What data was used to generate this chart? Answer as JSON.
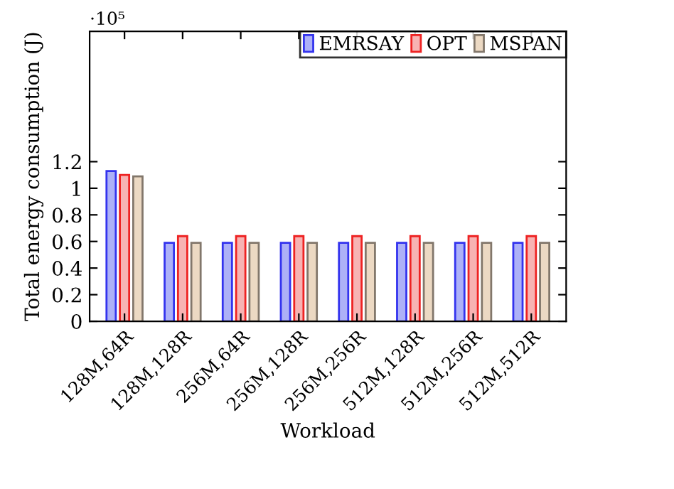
{
  "chart_data": {
    "type": "bar",
    "xlabel": "Workload",
    "ylabel": "Total energy consumption (J)",
    "categories": [
      "128M,64R",
      "128M,128R",
      "256M,64R",
      "256M,128R",
      "256M,256R",
      "512M,128R",
      "512M,256R",
      "512M,512R"
    ],
    "series": [
      {
        "name": "EMRSAY",
        "color": "#adb1f7",
        "values": [
          1.13,
          0.59,
          0.59,
          0.59,
          0.59,
          0.59,
          0.59,
          0.59
        ]
      },
      {
        "name": "OPT",
        "color": "#f7b3b3",
        "values": [
          1.1,
          0.64,
          0.64,
          0.64,
          0.64,
          0.64,
          0.64,
          0.64
        ]
      },
      {
        "name": "MSPAN",
        "color": "#ecd9c3",
        "values": [
          1.09,
          0.59,
          0.59,
          0.59,
          0.59,
          0.59,
          0.59,
          0.59
        ]
      }
    ],
    "ylim": [
      0,
      2.18
    ],
    "yticks": [
      0,
      0.2,
      0.4,
      0.6,
      0.8,
      1,
      1.2
    ],
    "annotations": [
      "·10⁵"
    ],
    "grid": false,
    "legend": "top right"
  }
}
